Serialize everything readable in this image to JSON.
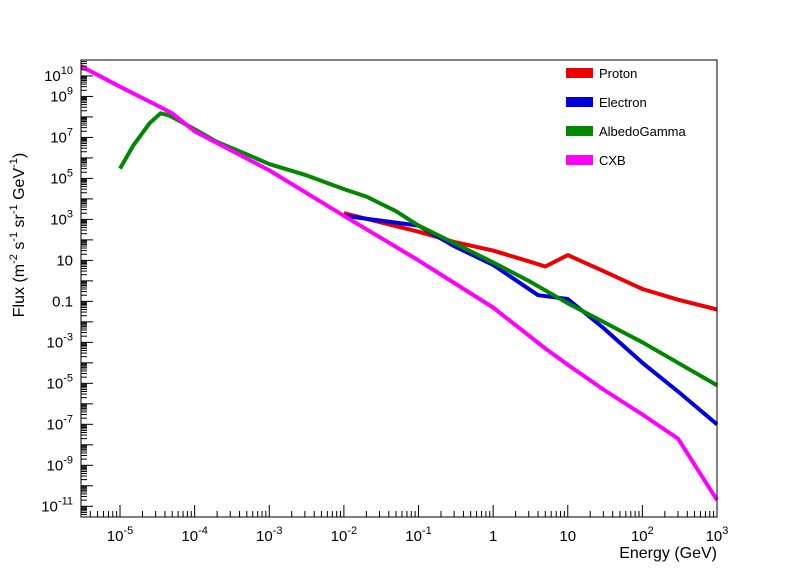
{
  "chart_data": {
    "type": "line",
    "title": "",
    "xlabel": "Energy (GeV)",
    "ylabel_parts": [
      "Flux (m",
      "-2",
      " s",
      "-1",
      " sr",
      "-1",
      " GeV",
      "-1",
      ")"
    ],
    "xscale": "log",
    "yscale": "log",
    "xlim": [
      3e-06,
      1000
    ],
    "ylim": [
      3e-12,
      60000000000.0
    ],
    "x_ticks": [
      {
        "base": "10",
        "exp": "-5",
        "value": 1e-05
      },
      {
        "base": "10",
        "exp": "-4",
        "value": 0.0001
      },
      {
        "base": "10",
        "exp": "-3",
        "value": 0.001
      },
      {
        "base": "10",
        "exp": "-2",
        "value": 0.01
      },
      {
        "base": "10",
        "exp": "-1",
        "value": 0.1
      },
      {
        "base": "1",
        "exp": "",
        "value": 1
      },
      {
        "base": "10",
        "exp": "",
        "value": 10
      },
      {
        "base": "10",
        "exp": "2",
        "value": 100
      },
      {
        "base": "10",
        "exp": "3",
        "value": 1000
      }
    ],
    "y_ticks": [
      {
        "base": "10",
        "exp": "-11",
        "value": 1e-11
      },
      {
        "base": "10",
        "exp": "-9",
        "value": 1e-09
      },
      {
        "base": "10",
        "exp": "-7",
        "value": 1e-07
      },
      {
        "base": "10",
        "exp": "-5",
        "value": 1e-05
      },
      {
        "base": "10",
        "exp": "-3",
        "value": 0.001
      },
      {
        "base": "0.1",
        "exp": "",
        "value": 0.1
      },
      {
        "base": "10",
        "exp": "",
        "value": 10
      },
      {
        "base": "10",
        "exp": "3",
        "value": 1000.0
      },
      {
        "base": "10",
        "exp": "5",
        "value": 100000.0
      },
      {
        "base": "10",
        "exp": "7",
        "value": 10000000.0
      },
      {
        "base": "10",
        "exp": "9",
        "value": 1000000000.0
      },
      {
        "base": "10",
        "exp": "10",
        "value": 10000000000.0
      }
    ],
    "legend_position": "top-right",
    "series": [
      {
        "name": "Proton",
        "color": "#ee0000",
        "x": [
          0.01,
          0.1,
          0.3,
          1,
          3,
          5,
          10,
          30,
          100,
          300,
          1000
        ],
        "y": [
          2000,
          250,
          80,
          30,
          9,
          5,
          18,
          3,
          0.4,
          0.12,
          0.04
        ]
      },
      {
        "name": "Electron",
        "color": "#0000dd",
        "x": [
          0.01,
          0.1,
          0.3,
          1,
          4,
          10,
          30,
          100,
          300,
          1000
        ],
        "y": [
          1500,
          500,
          50,
          6,
          0.2,
          0.13,
          0.005,
          0.0001,
          4e-06,
          1e-07
        ]
      },
      {
        "name": "AlbedoGamma",
        "color": "#008800",
        "x": [
          1e-05,
          1.5e-05,
          2.5e-05,
          3.5e-05,
          4.5e-05,
          6e-05,
          0.0001,
          0.0002,
          0.0005,
          0.001,
          0.003,
          0.01,
          0.02,
          0.05,
          0.1,
          0.3,
          1,
          3,
          10,
          30,
          100,
          300,
          1000
        ],
        "y": [
          300000.0,
          4000000.0,
          50000000.0,
          150000000.0,
          120000000.0,
          70000000.0,
          25000000.0,
          6000000.0,
          1500000.0,
          500000.0,
          150000.0,
          30000.0,
          13000.0,
          2500,
          500,
          70,
          8,
          1,
          0.08,
          0.01,
          0.001,
          0.0001,
          8e-06
        ]
      },
      {
        "name": "CXB",
        "color": "#ff00ff",
        "x": [
          3e-06,
          1e-05,
          3e-05,
          5e-05,
          0.0001,
          0.001,
          0.01,
          0.1,
          1,
          5,
          10,
          30,
          100,
          300,
          1000
        ],
        "y": [
          30000000000.0,
          3000000000.0,
          400000000.0,
          150000000.0,
          20000000.0,
          250000.0,
          1500,
          10,
          0.05,
          0.0005,
          8e-05,
          5e-06,
          3e-07,
          2e-08,
          2e-11
        ]
      }
    ]
  }
}
